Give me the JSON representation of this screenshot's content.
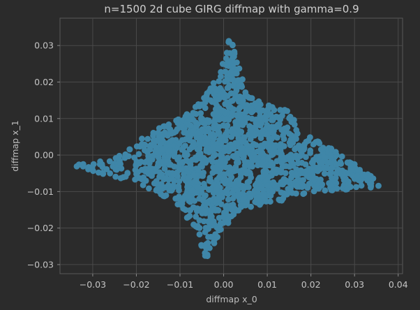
{
  "chart_data": {
    "type": "scatter",
    "title": "n=1500 2d cube GIRG diffmap with gamma=0.9",
    "xlabel": "diffmap x_0",
    "ylabel": "diffmap x_1",
    "xlim": [
      -0.0375,
      0.041
    ],
    "ylim": [
      -0.0325,
      0.0375
    ],
    "x_ticks": [
      -0.03,
      -0.02,
      -0.01,
      0.0,
      0.01,
      0.02,
      0.03,
      0.04
    ],
    "x_tick_labels": [
      "−0.03",
      "−0.02",
      "−0.01",
      "0.00",
      "0.01",
      "0.02",
      "0.03",
      "0.04"
    ],
    "y_ticks": [
      -0.03,
      -0.02,
      -0.01,
      0.0,
      0.01,
      0.02,
      0.03
    ],
    "y_tick_labels": [
      "−0.03",
      "−0.02",
      "−0.01",
      "0.00",
      "0.01",
      "0.02",
      "0.03"
    ],
    "grid": true,
    "point_color": "#3f86a8",
    "background_color": "#2b2b2b",
    "n_points": 1500,
    "shape_outline": [
      [
        -0.035,
        -0.003
      ],
      [
        -0.023,
        0.0
      ],
      [
        -0.0175,
        0.006
      ],
      [
        -0.01,
        0.01
      ],
      [
        -0.005,
        0.015
      ],
      [
        -0.001,
        0.022
      ],
      [
        0.0015,
        0.033
      ],
      [
        0.004,
        0.022
      ],
      [
        0.007,
        0.015
      ],
      [
        0.015,
        0.013
      ],
      [
        0.018,
        0.006
      ],
      [
        0.028,
        0.0
      ],
      [
        0.037,
        -0.009
      ],
      [
        0.02,
        -0.01
      ],
      [
        0.012,
        -0.013
      ],
      [
        0.004,
        -0.015
      ],
      [
        0.0,
        -0.02
      ],
      [
        -0.004,
        -0.03
      ],
      [
        -0.006,
        -0.021
      ],
      [
        -0.011,
        -0.013
      ],
      [
        -0.02,
        -0.0075
      ]
    ]
  }
}
